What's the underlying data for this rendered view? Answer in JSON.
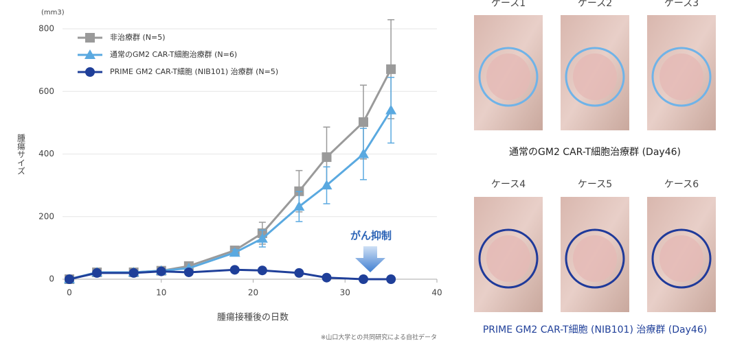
{
  "chart_data": {
    "type": "line",
    "y_unit": "(mm3)",
    "y_label": "腫瘍サイズ",
    "x_label": "腫瘍接種後の日数",
    "x": [
      0,
      3,
      7,
      10,
      13,
      18,
      21,
      25,
      28,
      32,
      35
    ],
    "series": [
      {
        "name": "非治療群 (N=5)",
        "color": "#9a9a9a",
        "marker": "square",
        "values": [
          0,
          22,
          22,
          27,
          42,
          92,
          147,
          281,
          390,
          502,
          671
        ],
        "errors": [
          null,
          null,
          null,
          null,
          null,
          10,
          35,
          66,
          96,
          118,
          158
        ]
      },
      {
        "name": "通常のGM2 CAR-T細胞治療群 (N=6)",
        "color": "#5aa9e0",
        "marker": "triangle",
        "values": [
          0,
          22,
          22,
          27,
          35,
          85,
          130,
          232,
          300,
          400,
          540
        ],
        "errors": [
          null,
          null,
          null,
          null,
          null,
          10,
          27,
          48,
          59,
          82,
          105
        ]
      },
      {
        "name": "PRIME GM2 CAR-T細胞 (NIB101) 治療群 (N=5)",
        "color": "#1f3f99",
        "marker": "circle",
        "values": [
          0,
          20,
          20,
          25,
          22,
          30,
          28,
          20,
          5,
          0,
          0
        ]
      }
    ],
    "xlim": [
      0,
      40
    ],
    "xticks": [
      0,
      10,
      20,
      30,
      40
    ],
    "ylim": [
      0,
      800
    ],
    "yticks": [
      0,
      200,
      400,
      600,
      800
    ],
    "grid": true,
    "legend": "upper left",
    "annotation": "がん抑制",
    "footnote": "※山口大学との共同研究による自社データ"
  },
  "photo_panel": {
    "top_cases": [
      "ケース1",
      "ケース2",
      "ケース3"
    ],
    "top_caption": "通常のGM2 CAR-T細胞治療群 (Day46)",
    "bottom_cases": [
      "ケース4",
      "ケース5",
      "ケース6"
    ],
    "bottom_caption": "PRIME GM2 CAR-T細胞 (NIB101) 治療群 (Day46)"
  }
}
